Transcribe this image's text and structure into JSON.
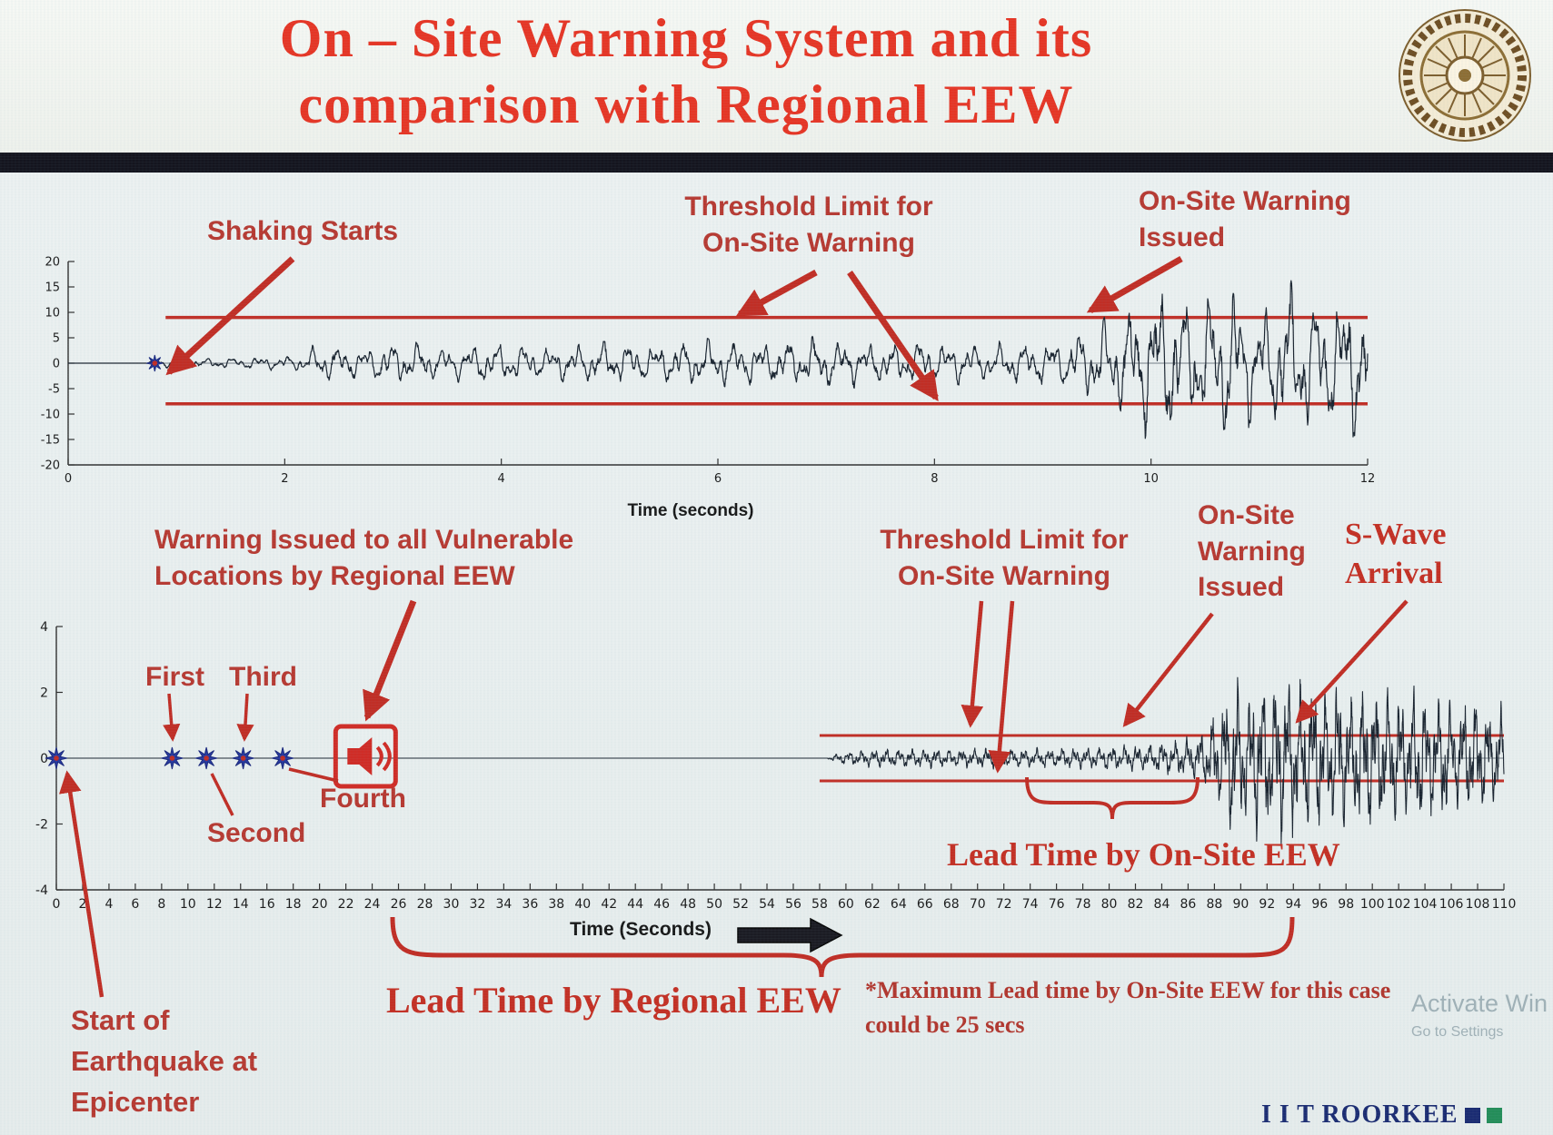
{
  "header": {
    "title_line1": "On – Site Warning System and its",
    "title_line2": "comparison with Regional EEW"
  },
  "chart_data": [
    {
      "name": "on-site accelerogram with warning threshold",
      "type": "line",
      "title": "",
      "xlabel": "Time (seconds)",
      "ylabel": "",
      "xlim": [
        0,
        12
      ],
      "xticks": [
        0,
        2,
        4,
        6,
        8,
        10,
        12
      ],
      "ylim": [
        -20,
        20
      ],
      "yticks": [
        20,
        15,
        10,
        5,
        0,
        -5,
        -10,
        -15,
        -20
      ],
      "grid": false,
      "legend": "none",
      "series_color": "#141e2a",
      "threshold": {
        "upper": 9,
        "lower": -8,
        "span": [
          0.9,
          12
        ],
        "color": "#c0281f"
      },
      "events": {
        "shaking_start_x": 0.8,
        "onsite_warning_issued_x": 9.4
      },
      "star_events": [
        {
          "x": 0.8,
          "label": "shaking-start"
        }
      ],
      "envelope": [
        [
          0,
          0
        ],
        [
          0.72,
          0
        ],
        [
          0.8,
          0.8
        ],
        [
          1.1,
          1.1
        ],
        [
          1.6,
          1.2
        ],
        [
          2.1,
          1.6
        ],
        [
          2.35,
          4.2
        ],
        [
          2.7,
          3.2
        ],
        [
          3.1,
          4.6
        ],
        [
          3.5,
          3.2
        ],
        [
          3.9,
          4.4
        ],
        [
          4.4,
          3.4
        ],
        [
          4.9,
          4.6
        ],
        [
          5.4,
          3.8
        ],
        [
          5.9,
          5.2
        ],
        [
          6.4,
          4.2
        ],
        [
          6.9,
          5.6
        ],
        [
          7.4,
          4.2
        ],
        [
          7.9,
          4.6
        ],
        [
          8.4,
          4.0
        ],
        [
          8.9,
          4.6
        ],
        [
          9.2,
          5.2
        ],
        [
          9.5,
          8.5
        ],
        [
          9.8,
          12
        ],
        [
          10.1,
          16
        ],
        [
          10.4,
          13
        ],
        [
          10.7,
          17
        ],
        [
          11.0,
          12
        ],
        [
          11.3,
          16
        ],
        [
          11.6,
          13
        ],
        [
          11.9,
          17
        ],
        [
          12,
          14
        ]
      ],
      "synth": {
        "freqs": [
          4.1,
          9.3,
          16.7
        ],
        "weights": [
          0.45,
          0.3,
          0.22
        ],
        "noise": 0.3,
        "samples": 2600
      },
      "annotations": {
        "shaking_starts": "Shaking Starts",
        "threshold_l1": "Threshold Limit for",
        "threshold_l2": "On-Site Warning",
        "warning_l1": "On-Site Warning",
        "warning_l2": "Issued"
      }
    },
    {
      "name": "regional EEW vs on-site EEW timeline seismogram",
      "type": "line",
      "title": "",
      "xlabel": "Time (Seconds)",
      "ylabel": "",
      "xlim": [
        0,
        110
      ],
      "xticks": [
        0,
        2,
        4,
        6,
        8,
        10,
        12,
        14,
        16,
        18,
        20,
        22,
        24,
        26,
        28,
        30,
        32,
        34,
        36,
        38,
        40,
        42,
        44,
        46,
        48,
        50,
        52,
        54,
        56,
        58,
        60,
        62,
        64,
        66,
        68,
        70,
        72,
        74,
        76,
        78,
        80,
        82,
        84,
        86,
        88,
        90,
        92,
        94,
        96,
        98,
        100,
        102,
        104,
        106,
        108,
        110
      ],
      "ylim": [
        -4,
        4
      ],
      "yticks": [
        4,
        2,
        0,
        -2,
        -4
      ],
      "grid": false,
      "legend": "none",
      "series_color": "#141e2a",
      "threshold": {
        "upper": 0.69,
        "lower": -0.69,
        "span": [
          58,
          110
        ],
        "color": "#c0281f"
      },
      "events": {
        "epicenter_x": 0,
        "p_detections": [
          {
            "label": "First",
            "x": 8.8
          },
          {
            "label": "Second",
            "x": 11.4
          },
          {
            "label": "Third",
            "x": 14.2
          },
          {
            "label": "Fourth",
            "x": 17.2
          }
        ],
        "regional_warning_x": 23.5,
        "onsite_warning_x": 80.5,
        "s_wave_arrival_x": 93.5
      },
      "star_events": [
        {
          "x": 0,
          "label": "epicenter"
        },
        {
          "x": 8.8,
          "label": "first-pick"
        },
        {
          "x": 11.4,
          "label": "second-pick"
        },
        {
          "x": 14.2,
          "label": "third-pick"
        },
        {
          "x": 17.2,
          "label": "fourth-pick"
        }
      ],
      "envelope": [
        [
          0,
          0
        ],
        [
          58.5,
          0
        ],
        [
          59.5,
          0.18
        ],
        [
          62,
          0.28
        ],
        [
          65,
          0.33
        ],
        [
          68,
          0.28
        ],
        [
          71,
          0.33
        ],
        [
          74,
          0.3
        ],
        [
          77,
          0.33
        ],
        [
          80,
          0.38
        ],
        [
          82,
          0.42
        ],
        [
          84,
          0.5
        ],
        [
          86,
          0.65
        ],
        [
          87.5,
          1.0
        ],
        [
          88.5,
          1.9
        ],
        [
          89.5,
          2.7
        ],
        [
          90.5,
          2.2
        ],
        [
          91.5,
          2.8
        ],
        [
          92.5,
          2.4
        ],
        [
          93.5,
          2.9
        ],
        [
          94.5,
          2.3
        ],
        [
          95.5,
          2.7
        ],
        [
          96.5,
          2.1
        ],
        [
          97.5,
          2.5
        ],
        [
          98.5,
          2.0
        ],
        [
          99.5,
          2.6
        ],
        [
          100.5,
          2.1
        ],
        [
          101.5,
          2.4
        ],
        [
          102.5,
          1.9
        ],
        [
          103.5,
          2.3
        ],
        [
          104.5,
          1.8
        ],
        [
          105.5,
          2.1
        ],
        [
          106.5,
          1.7
        ],
        [
          107.5,
          2.0
        ],
        [
          108.5,
          1.6
        ],
        [
          110,
          1.7
        ]
      ],
      "synth": {
        "freqs": [
          1.05,
          2.55,
          5.9
        ],
        "weights": [
          0.45,
          0.3,
          0.22
        ],
        "noise": 0.3,
        "samples": 6000
      },
      "annotations": {
        "regional_l1": "Warning Issued to all Vulnerable",
        "regional_l2": "Locations by Regional EEW",
        "pick_first": "First",
        "pick_second": "Second",
        "pick_third": "Third",
        "pick_fourth": "Fourth",
        "threshold_l1": "Threshold Limit for",
        "threshold_l2": "On-Site Warning",
        "onsite_l1": "On-Site",
        "onsite_l2": "Warning",
        "onsite_l3": "Issued",
        "swave_l1": "S-Wave",
        "swave_l2": "Arrival",
        "lead_onsite": "Lead Time by On-Site EEW",
        "lead_regional": "Lead Time by Regional EEW",
        "epicenter_l1": "Start of",
        "epicenter_l2": "Earthquake at",
        "epicenter_l3": "Epicenter"
      }
    }
  ],
  "footnote": {
    "line1": "*Maximum Lead time by On-Site EEW for this case",
    "line2": "could be 25 secs"
  },
  "footer": {
    "brand": "I I T ROORKEE"
  },
  "watermark": {
    "line1": "Activate Win",
    "line2": "Go to Settings"
  }
}
